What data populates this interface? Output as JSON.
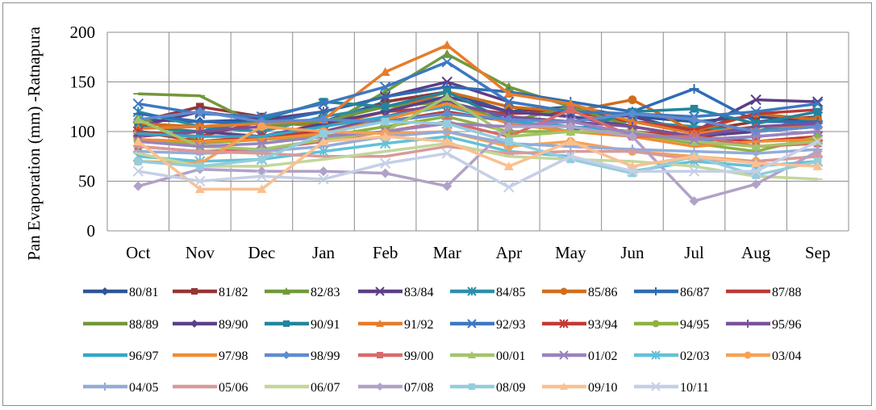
{
  "chart_data": {
    "type": "line",
    "title": "",
    "xlabel": "",
    "ylabel": "Pan Evaporation (mm) -Ratnapura",
    "ylim": [
      0,
      200
    ],
    "yticks": [
      0,
      50,
      100,
      150,
      200
    ],
    "grid": true,
    "legend_position": "bottom",
    "categories": [
      "Oct",
      "Nov",
      "Dec",
      "Jan",
      "Feb",
      "Mar",
      "Apr",
      "May",
      "Jun",
      "Jul",
      "Aug",
      "Sep"
    ],
    "series": [
      {
        "name": "80/81",
        "color": "#2e5597",
        "marker": "diamond",
        "values": [
          112,
          110,
          112,
          110,
          130,
          140,
          120,
          125,
          115,
          110,
          115,
          110
        ]
      },
      {
        "name": "81/82",
        "color": "#943634",
        "marker": "square",
        "values": [
          110,
          125,
          115,
          105,
          130,
          140,
          125,
          115,
          110,
          100,
          110,
          115
        ]
      },
      {
        "name": "82/83",
        "color": "#6f9a3a",
        "marker": "triangle",
        "values": [
          115,
          90,
          95,
          105,
          140,
          178,
          145,
          125,
          105,
          95,
          100,
          108
        ]
      },
      {
        "name": "83/84",
        "color": "#5c3e85",
        "marker": "x",
        "values": [
          105,
          120,
          112,
          120,
          135,
          150,
          130,
          120,
          115,
          100,
          132,
          130
        ]
      },
      {
        "name": "84/85",
        "color": "#2c8fa8",
        "marker": "star",
        "values": [
          120,
          105,
          100,
          115,
          125,
          135,
          120,
          115,
          110,
          105,
          100,
          115
        ]
      },
      {
        "name": "85/86",
        "color": "#d06e1b",
        "marker": "circle",
        "values": [
          108,
          105,
          110,
          105,
          120,
          140,
          125,
          120,
          132,
          100,
          118,
          112
        ]
      },
      {
        "name": "86/87",
        "color": "#2e6cb3",
        "marker": "plus",
        "values": [
          118,
          110,
          108,
          120,
          135,
          145,
          140,
          130,
          120,
          143,
          110,
          110
        ]
      },
      {
        "name": "87/88",
        "color": "#b93a36",
        "marker": "dash",
        "values": [
          100,
          95,
          110,
          108,
          120,
          125,
          118,
          120,
          110,
          102,
          118,
          122
        ]
      },
      {
        "name": "88/89",
        "color": "#74963c",
        "marker": "dash",
        "values": [
          138,
          136,
          105,
          110,
          125,
          130,
          110,
          125,
          105,
          95,
          85,
          88
        ]
      },
      {
        "name": "89/90",
        "color": "#5a418a",
        "marker": "diamond",
        "values": [
          95,
          100,
          95,
          108,
          120,
          135,
          120,
          115,
          105,
          95,
          100,
          105
        ]
      },
      {
        "name": "90/91",
        "color": "#23849c",
        "marker": "square",
        "values": [
          105,
          100,
          112,
          130,
          125,
          140,
          110,
          100,
          120,
          123,
          108,
          120
        ]
      },
      {
        "name": "91/92",
        "color": "#e67c2c",
        "marker": "triangle",
        "values": [
          103,
          105,
          108,
          112,
          160,
          187,
          138,
          128,
          110,
          98,
          105,
          106
        ]
      },
      {
        "name": "92/93",
        "color": "#3c78c0",
        "marker": "x",
        "values": [
          128,
          118,
          115,
          128,
          145,
          170,
          130,
          120,
          118,
          115,
          120,
          128
        ]
      },
      {
        "name": "93/94",
        "color": "#c23a36",
        "marker": "star",
        "values": [
          100,
          90,
          95,
          100,
          110,
          120,
          110,
          105,
          100,
          95,
          90,
          95
        ]
      },
      {
        "name": "94/95",
        "color": "#8db241",
        "marker": "circle",
        "values": [
          90,
          88,
          92,
          95,
          105,
          115,
          100,
          100,
          98,
          88,
          80,
          95
        ]
      },
      {
        "name": "95/96",
        "color": "#7b5299",
        "marker": "plus",
        "values": [
          95,
          100,
          105,
          100,
          115,
          130,
          115,
          110,
          105,
          95,
          105,
          108
        ]
      },
      {
        "name": "96/97",
        "color": "#32a7c8",
        "marker": "dash",
        "values": [
          98,
          95,
          95,
          105,
          115,
          125,
          110,
          105,
          100,
          90,
          95,
          100
        ]
      },
      {
        "name": "97/98",
        "color": "#f28c30",
        "marker": "dash",
        "values": [
          92,
          90,
          92,
          98,
          112,
          128,
          108,
          100,
          95,
          85,
          90,
          92
        ]
      },
      {
        "name": "98/99",
        "color": "#5f8bd0",
        "marker": "diamond",
        "values": [
          112,
          120,
          110,
          112,
          110,
          118,
          112,
          110,
          118,
          112,
          100,
          105
        ]
      },
      {
        "name": "99/00",
        "color": "#d86b69",
        "marker": "square",
        "values": [
          85,
          80,
          82,
          90,
          100,
          110,
          95,
          122,
          95,
          95,
          85,
          88
        ]
      },
      {
        "name": "00/01",
        "color": "#a3c46a",
        "marker": "triangle",
        "values": [
          112,
          85,
          82,
          92,
          100,
          135,
          95,
          100,
          100,
          90,
          85,
          90
        ]
      },
      {
        "name": "01/02",
        "color": "#9b82be",
        "marker": "x",
        "values": [
          90,
          85,
          88,
          95,
          100,
          108,
          105,
          110,
          98,
          92,
          95,
          100
        ]
      },
      {
        "name": "02/03",
        "color": "#62c1d8",
        "marker": "star",
        "values": [
          75,
          70,
          72,
          80,
          88,
          95,
          80,
          75,
          60,
          70,
          65,
          70
        ]
      },
      {
        "name": "03/04",
        "color": "#f7a154",
        "marker": "circle",
        "values": [
          70,
          68,
          105,
          100,
          98,
          100,
          85,
          90,
          80,
          75,
          70,
          75
        ]
      },
      {
        "name": "04/05",
        "color": "#93acd8",
        "marker": "plus",
        "values": [
          80,
          78,
          80,
          85,
          95,
          100,
          88,
          85,
          82,
          80,
          78,
          82
        ]
      },
      {
        "name": "05/06",
        "color": "#d99a99",
        "marker": "dash",
        "values": [
          85,
          80,
          78,
          75,
          75,
          85,
          78,
          80,
          80,
          72,
          70,
          75
        ]
      },
      {
        "name": "06/07",
        "color": "#c3d69b",
        "marker": "dash",
        "values": [
          78,
          65,
          65,
          72,
          80,
          88,
          75,
          72,
          70,
          65,
          55,
          52
        ]
      },
      {
        "name": "07/08",
        "color": "#b2a1c7",
        "marker": "diamond",
        "values": [
          45,
          62,
          60,
          60,
          58,
          45,
          105,
          105,
          95,
          30,
          47,
          80
        ]
      },
      {
        "name": "08/09",
        "color": "#93cddd",
        "marker": "square",
        "values": [
          70,
          65,
          72,
          98,
          110,
          108,
          90,
          72,
          58,
          75,
          56,
          70
        ]
      },
      {
        "name": "09/10",
        "color": "#fac090",
        "marker": "triangle",
        "values": [
          90,
          42,
          42,
          90,
          95,
          90,
          65,
          90,
          65,
          75,
          68,
          65
        ]
      },
      {
        "name": "10/11",
        "color": "#c5cfe6",
        "marker": "x",
        "values": [
          60,
          50,
          55,
          52,
          68,
          78,
          44,
          75,
          60,
          60,
          60,
          90
        ]
      }
    ]
  }
}
